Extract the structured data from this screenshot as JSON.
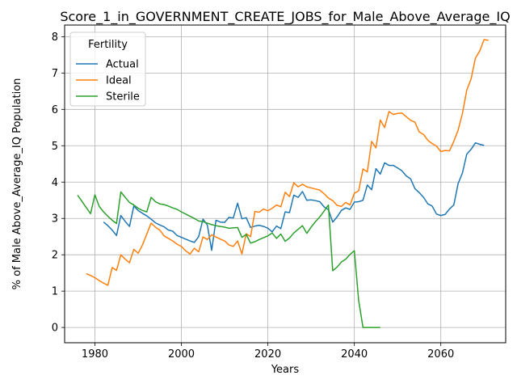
{
  "chart_data": {
    "type": "line",
    "title": "Score_1_in_GOVERNMENT_CREATE_JOBS_for_Male_Above_Average_IQ",
    "xlabel": "Years",
    "ylabel": "% of Male Above_Average_IQ Population",
    "xlim": [
      1973,
      2075
    ],
    "ylim": [
      -0.42,
      8.32
    ],
    "xticks": [
      1980,
      2000,
      2020,
      2040,
      2060
    ],
    "yticks": [
      0,
      1,
      2,
      3,
      4,
      5,
      6,
      7,
      8
    ],
    "grid": true,
    "legend": {
      "title": "Fertility",
      "placement": "top-left"
    },
    "series": [
      {
        "name": "Actual",
        "color": "#1f77b4",
        "points": [
          [
            1982,
            2.9
          ],
          [
            1983,
            2.8
          ],
          [
            1984,
            2.68
          ],
          [
            1985,
            2.53
          ],
          [
            1986,
            3.08
          ],
          [
            1987,
            2.92
          ],
          [
            1988,
            2.78
          ],
          [
            1989,
            3.34
          ],
          [
            1990,
            3.22
          ],
          [
            1991,
            3.14
          ],
          [
            1992,
            3.07
          ],
          [
            1993,
            2.98
          ],
          [
            1994,
            2.88
          ],
          [
            1995,
            2.82
          ],
          [
            1996,
            2.77
          ],
          [
            1997,
            2.68
          ],
          [
            1998,
            2.65
          ],
          [
            1999,
            2.53
          ],
          [
            2000,
            2.48
          ],
          [
            2001,
            2.43
          ],
          [
            2002,
            2.38
          ],
          [
            2003,
            2.34
          ],
          [
            2004,
            2.5
          ],
          [
            2005,
            2.98
          ],
          [
            2006,
            2.82
          ],
          [
            2007,
            2.12
          ],
          [
            2008,
            2.95
          ],
          [
            2009,
            2.9
          ],
          [
            2010,
            2.89
          ],
          [
            2011,
            3.03
          ],
          [
            2012,
            3.01
          ],
          [
            2013,
            3.42
          ],
          [
            2014,
            2.99
          ],
          [
            2015,
            3.02
          ],
          [
            2016,
            2.75
          ],
          [
            2017,
            2.79
          ],
          [
            2018,
            2.81
          ],
          [
            2019,
            2.78
          ],
          [
            2020,
            2.73
          ],
          [
            2021,
            2.63
          ],
          [
            2022,
            2.79
          ],
          [
            2023,
            2.72
          ],
          [
            2024,
            3.18
          ],
          [
            2025,
            3.16
          ],
          [
            2026,
            3.64
          ],
          [
            2027,
            3.58
          ],
          [
            2028,
            3.74
          ],
          [
            2029,
            3.5
          ],
          [
            2030,
            3.51
          ],
          [
            2031,
            3.49
          ],
          [
            2032,
            3.46
          ],
          [
            2033,
            3.32
          ],
          [
            2034,
            3.24
          ],
          [
            2035,
            2.9
          ],
          [
            2036,
            3.04
          ],
          [
            2037,
            3.22
          ],
          [
            2038,
            3.29
          ],
          [
            2039,
            3.25
          ],
          [
            2040,
            3.45
          ],
          [
            2041,
            3.46
          ],
          [
            2042,
            3.5
          ],
          [
            2043,
            3.92
          ],
          [
            2044,
            3.79
          ],
          [
            2045,
            4.37
          ],
          [
            2046,
            4.22
          ],
          [
            2047,
            4.53
          ],
          [
            2048,
            4.46
          ],
          [
            2049,
            4.46
          ],
          [
            2050,
            4.39
          ],
          [
            2051,
            4.31
          ],
          [
            2052,
            4.17
          ],
          [
            2053,
            4.09
          ],
          [
            2054,
            3.82
          ],
          [
            2055,
            3.71
          ],
          [
            2056,
            3.58
          ],
          [
            2057,
            3.4
          ],
          [
            2058,
            3.34
          ],
          [
            2059,
            3.12
          ],
          [
            2060,
            3.08
          ],
          [
            2061,
            3.11
          ],
          [
            2062,
            3.26
          ],
          [
            2063,
            3.37
          ],
          [
            2064,
            3.96
          ],
          [
            2065,
            4.25
          ],
          [
            2066,
            4.77
          ],
          [
            2067,
            4.9
          ],
          [
            2068,
            5.08
          ],
          [
            2069,
            5.04
          ],
          [
            2070,
            5.01
          ]
        ]
      },
      {
        "name": "Ideal",
        "color": "#ff7f0e",
        "points": [
          [
            1978,
            1.48
          ],
          [
            1979,
            1.43
          ],
          [
            1980,
            1.37
          ],
          [
            1981,
            1.29
          ],
          [
            1982,
            1.22
          ],
          [
            1983,
            1.16
          ],
          [
            1984,
            1.65
          ],
          [
            1985,
            1.57
          ],
          [
            1986,
            2.0
          ],
          [
            1987,
            1.88
          ],
          [
            1988,
            1.78
          ],
          [
            1989,
            2.15
          ],
          [
            1990,
            2.04
          ],
          [
            1991,
            2.27
          ],
          [
            1992,
            2.57
          ],
          [
            1993,
            2.87
          ],
          [
            1994,
            2.76
          ],
          [
            1995,
            2.68
          ],
          [
            1996,
            2.52
          ],
          [
            1997,
            2.45
          ],
          [
            1998,
            2.38
          ],
          [
            1999,
            2.29
          ],
          [
            2000,
            2.23
          ],
          [
            2001,
            2.11
          ],
          [
            2002,
            2.02
          ],
          [
            2003,
            2.18
          ],
          [
            2004,
            2.08
          ],
          [
            2005,
            2.49
          ],
          [
            2006,
            2.42
          ],
          [
            2007,
            2.55
          ],
          [
            2008,
            2.49
          ],
          [
            2009,
            2.43
          ],
          [
            2010,
            2.38
          ],
          [
            2011,
            2.27
          ],
          [
            2012,
            2.23
          ],
          [
            2013,
            2.38
          ],
          [
            2014,
            2.02
          ],
          [
            2015,
            2.58
          ],
          [
            2016,
            2.5
          ],
          [
            2017,
            3.19
          ],
          [
            2018,
            3.17
          ],
          [
            2019,
            3.26
          ],
          [
            2020,
            3.21
          ],
          [
            2021,
            3.28
          ],
          [
            2022,
            3.37
          ],
          [
            2023,
            3.32
          ],
          [
            2024,
            3.72
          ],
          [
            2025,
            3.6
          ],
          [
            2026,
            3.98
          ],
          [
            2027,
            3.87
          ],
          [
            2028,
            3.94
          ],
          [
            2029,
            3.87
          ],
          [
            2030,
            3.84
          ],
          [
            2031,
            3.81
          ],
          [
            2032,
            3.78
          ],
          [
            2033,
            3.68
          ],
          [
            2034,
            3.56
          ],
          [
            2035,
            3.49
          ],
          [
            2036,
            3.36
          ],
          [
            2037,
            3.33
          ],
          [
            2038,
            3.44
          ],
          [
            2039,
            3.37
          ],
          [
            2040,
            3.69
          ],
          [
            2041,
            3.76
          ],
          [
            2042,
            4.36
          ],
          [
            2043,
            4.28
          ],
          [
            2044,
            5.12
          ],
          [
            2045,
            4.94
          ],
          [
            2046,
            5.71
          ],
          [
            2047,
            5.5
          ],
          [
            2048,
            5.94
          ],
          [
            2049,
            5.86
          ],
          [
            2050,
            5.89
          ],
          [
            2051,
            5.9
          ],
          [
            2052,
            5.8
          ],
          [
            2053,
            5.7
          ],
          [
            2054,
            5.65
          ],
          [
            2055,
            5.38
          ],
          [
            2056,
            5.31
          ],
          [
            2057,
            5.15
          ],
          [
            2058,
            5.06
          ],
          [
            2059,
            4.99
          ],
          [
            2060,
            4.84
          ],
          [
            2061,
            4.87
          ],
          [
            2062,
            4.86
          ],
          [
            2063,
            5.12
          ],
          [
            2064,
            5.43
          ],
          [
            2065,
            5.89
          ],
          [
            2066,
            6.53
          ],
          [
            2067,
            6.84
          ],
          [
            2068,
            7.41
          ],
          [
            2069,
            7.61
          ],
          [
            2070,
            7.92
          ],
          [
            2071,
            7.9
          ]
        ]
      },
      {
        "name": "Sterile",
        "color": "#2ca02c",
        "points": [
          [
            1976,
            3.64
          ],
          [
            1977,
            3.47
          ],
          [
            1978,
            3.3
          ],
          [
            1979,
            3.13
          ],
          [
            1980,
            3.65
          ],
          [
            1981,
            3.33
          ],
          [
            1982,
            3.18
          ],
          [
            1983,
            3.06
          ],
          [
            1984,
            2.95
          ],
          [
            1985,
            2.86
          ],
          [
            1986,
            3.73
          ],
          [
            1987,
            3.58
          ],
          [
            1988,
            3.44
          ],
          [
            1989,
            3.37
          ],
          [
            1990,
            3.28
          ],
          [
            1991,
            3.22
          ],
          [
            1992,
            3.18
          ],
          [
            1993,
            3.58
          ],
          [
            1994,
            3.46
          ],
          [
            1995,
            3.4
          ],
          [
            1996,
            3.38
          ],
          [
            1997,
            3.34
          ],
          [
            1998,
            3.29
          ],
          [
            1999,
            3.25
          ],
          [
            2000,
            3.18
          ],
          [
            2001,
            3.12
          ],
          [
            2002,
            3.06
          ],
          [
            2003,
            3.0
          ],
          [
            2004,
            2.93
          ],
          [
            2005,
            2.91
          ],
          [
            2006,
            2.87
          ],
          [
            2007,
            2.83
          ],
          [
            2008,
            2.8
          ],
          [
            2009,
            2.78
          ],
          [
            2010,
            2.76
          ],
          [
            2011,
            2.73
          ],
          [
            2012,
            2.74
          ],
          [
            2013,
            2.75
          ],
          [
            2014,
            2.48
          ],
          [
            2015,
            2.56
          ],
          [
            2016,
            2.32
          ],
          [
            2017,
            2.36
          ],
          [
            2018,
            2.42
          ],
          [
            2019,
            2.47
          ],
          [
            2020,
            2.52
          ],
          [
            2021,
            2.6
          ],
          [
            2022,
            2.45
          ],
          [
            2023,
            2.57
          ],
          [
            2024,
            2.37
          ],
          [
            2025,
            2.46
          ],
          [
            2026,
            2.6
          ],
          [
            2027,
            2.7
          ],
          [
            2028,
            2.8
          ],
          [
            2029,
            2.59
          ],
          [
            2030,
            2.76
          ],
          [
            2031,
            2.91
          ],
          [
            2032,
            3.04
          ],
          [
            2033,
            3.2
          ],
          [
            2034,
            3.37
          ],
          [
            2035,
            1.56
          ],
          [
            2036,
            1.66
          ],
          [
            2037,
            1.8
          ],
          [
            2038,
            1.88
          ],
          [
            2039,
            2.01
          ],
          [
            2040,
            2.11
          ],
          [
            2041,
            0.74
          ],
          [
            2042,
            0.0
          ],
          [
            2043,
            0.0
          ],
          [
            2044,
            0.0
          ],
          [
            2045,
            0.0
          ],
          [
            2046,
            0.0
          ]
        ]
      }
    ]
  }
}
